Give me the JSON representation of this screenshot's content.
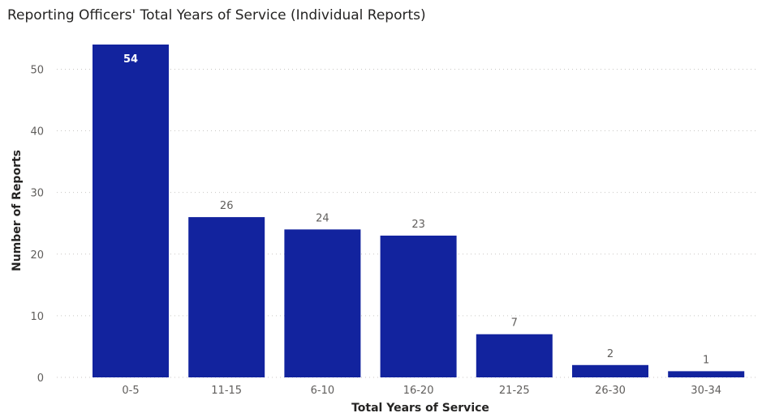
{
  "chart_data": {
    "type": "bar",
    "title": "Reporting Officers' Total Years of Service (Individual Reports)",
    "xlabel": "Total Years of Service",
    "ylabel": "Number of Reports",
    "categories": [
      "0-5",
      "11-15",
      "6-10",
      "16-20",
      "21-25",
      "26-30",
      "30-34"
    ],
    "values": [
      54,
      26,
      24,
      23,
      7,
      2,
      1
    ],
    "ylim": [
      0,
      54
    ],
    "yticks": [
      0,
      10,
      20,
      30,
      40,
      50
    ],
    "grid": true,
    "legend": "none",
    "colors": {
      "bar": "#12239e",
      "label_inside": "#ffffff",
      "label_outside": "#605e5c"
    }
  }
}
